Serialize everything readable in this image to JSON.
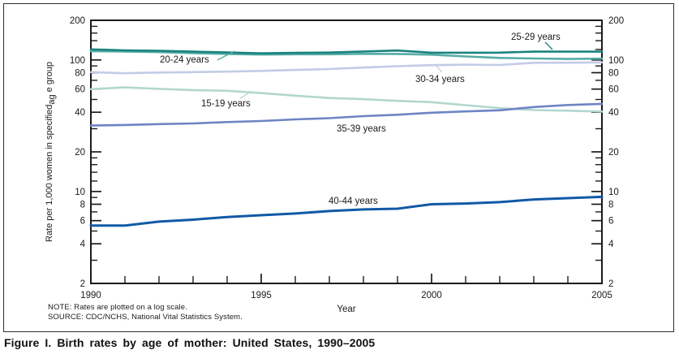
{
  "caption": "Figure I. Birth rates by age of mother: United States, 1990–2005",
  "notes": {
    "note": "NOTE: Rates are plotted on a log scale.",
    "source": "SOURCE: CDC/NCHS, National Vital Statistics System."
  },
  "chart_data": {
    "type": "line",
    "title": "",
    "scale_y": "log",
    "xlabel": "Year",
    "ylabel": "Rate per 1,000 women in specified age group",
    "ylabel_display": {
      "prefix": "Rate per 1,000 women in specified",
      "subscript": "ag",
      "suffix": " e group"
    },
    "x": [
      1990,
      1991,
      1992,
      1993,
      1994,
      1995,
      1996,
      1997,
      1998,
      1999,
      2000,
      2001,
      2002,
      2003,
      2004,
      2005
    ],
    "xlim": [
      1990,
      2005
    ],
    "ylim": [
      2,
      200
    ],
    "xticks_labeled": [
      1990,
      1995,
      2000,
      2005
    ],
    "yticks_labeled": [
      200,
      100,
      80,
      60,
      40,
      20,
      10,
      8,
      6,
      4,
      2
    ],
    "yticks_minor": [
      180,
      160,
      140,
      120,
      90,
      70,
      50,
      30,
      18,
      16,
      14,
      12,
      9,
      7,
      5,
      3
    ],
    "grid": false,
    "legend": "inline-labels",
    "axis_color": "#1b1b1b",
    "series": [
      {
        "name": "15-19 years",
        "color": "#b3d7cf",
        "values": [
          59.9,
          61.8,
          60.3,
          59.0,
          58.2,
          56.0,
          53.5,
          51.3,
          50.3,
          48.8,
          47.7,
          45.3,
          43.0,
          41.6,
          41.1,
          40.5
        ]
      },
      {
        "name": "30-34 years",
        "color": "#c3cbe6",
        "values": [
          80.8,
          79.2,
          80.2,
          80.8,
          81.5,
          82.5,
          83.9,
          85.3,
          87.4,
          89.6,
          91.2,
          91.9,
          91.5,
          95.1,
          95.3,
          95.8
        ]
      },
      {
        "name": "20-24 years",
        "color": "#57aca6",
        "values": [
          116.5,
          115.7,
          114.6,
          112.6,
          111.1,
          109.8,
          110.4,
          110.4,
          111.2,
          111.0,
          109.7,
          106.2,
          103.6,
          102.6,
          101.7,
          102.2
        ]
      },
      {
        "name": "25-29 years",
        "color": "#1a837e",
        "values": [
          120.2,
          118.2,
          117.4,
          115.5,
          113.9,
          112.2,
          113.1,
          113.8,
          115.9,
          117.8,
          113.5,
          113.4,
          113.6,
          115.6,
          115.5,
          115.5
        ]
      },
      {
        "name": "35-39 years",
        "color": "#6e84c4",
        "values": [
          31.7,
          32.0,
          32.5,
          32.9,
          33.7,
          34.3,
          35.3,
          36.1,
          37.4,
          38.3,
          39.7,
          40.6,
          41.4,
          43.8,
          45.4,
          46.3
        ]
      },
      {
        "name": "40-44 years",
        "color": "#1159a6",
        "values": [
          5.5,
          5.5,
          5.9,
          6.1,
          6.4,
          6.6,
          6.8,
          7.1,
          7.3,
          7.4,
          8.0,
          8.1,
          8.3,
          8.7,
          8.9,
          9.1
        ]
      }
    ]
  }
}
